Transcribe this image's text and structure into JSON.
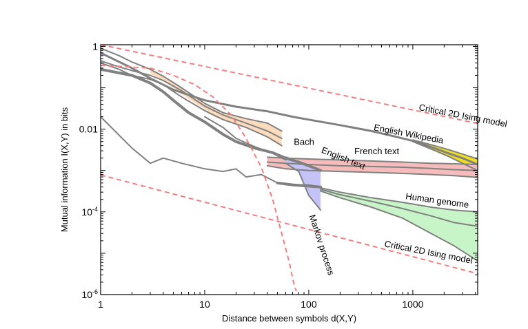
{
  "chart_data": {
    "type": "line",
    "xlabel": "Distance between symbols d(X,Y)",
    "ylabel": "Mutual information I(X,Y) in bits",
    "xscale": "log",
    "yscale": "log",
    "xlim": [
      1,
      4200
    ],
    "ylim": [
      1e-06,
      1.1
    ],
    "grid": false,
    "legend": "none (series labelled inline)",
    "xticks": [
      {
        "value": 1,
        "label": "1"
      },
      {
        "value": 10,
        "label": "10"
      },
      {
        "value": 100,
        "label": "100"
      },
      {
        "value": 1000,
        "label": "1000"
      }
    ],
    "yticks": [
      {
        "value": 1,
        "label": "1",
        "exp": ""
      },
      {
        "value": 0.01,
        "label": "0.01",
        "exp": ""
      },
      {
        "value": 0.0001,
        "label": "10",
        "exp": "-4"
      },
      {
        "value": 1e-06,
        "label": "10",
        "exp": "-6"
      }
    ],
    "bands": [
      {
        "id": "wikipedia",
        "fill": "#f0e020",
        "x": [
          1000,
          1500,
          2200,
          3000,
          4200
        ],
        "upper": [
          0.0055,
          0.0042,
          0.0032,
          0.0025,
          0.0019
        ],
        "lower": [
          0.005,
          0.0033,
          0.0022,
          0.0015,
          0.001
        ]
      },
      {
        "id": "bach",
        "fill": "#fddcbe",
        "x": [
          3,
          4,
          6,
          10,
          15,
          25,
          40,
          55
        ],
        "upper": [
          0.28,
          0.19,
          0.1,
          0.042,
          0.025,
          0.018,
          0.014,
          0.009
        ],
        "lower": [
          0.22,
          0.15,
          0.07,
          0.03,
          0.017,
          0.011,
          0.0065,
          0.004
        ]
      },
      {
        "id": "french",
        "fill": "#f6bcbc",
        "x": [
          40,
          60,
          100,
          200,
          400,
          800,
          1500,
          2500,
          4200
        ],
        "upper": [
          0.0021,
          0.002,
          0.0019,
          0.0018,
          0.0017,
          0.0016,
          0.0015,
          0.00145,
          0.0014
        ],
        "lower": [
          0.0013,
          0.0011,
          0.001,
          0.00095,
          0.0009,
          0.00085,
          0.0008,
          0.00075,
          0.00068
        ]
      },
      {
        "id": "english-text",
        "fill": "#c4c2f6",
        "x": [
          60,
          80,
          100,
          130
        ],
        "upper": [
          0.0023,
          0.0016,
          0.00125,
          0.001
        ],
        "lower": [
          0.0015,
          0.00095,
          0.00025,
          0.00011
        ]
      },
      {
        "id": "genome",
        "fill": "#c8f5c8",
        "x": [
          130,
          200,
          400,
          800,
          1500,
          2500,
          4200
        ],
        "upper": [
          0.00038,
          0.0003,
          0.00022,
          0.00017,
          0.00013,
          0.00011,
          0.0001
        ],
        "lower": [
          0.00032,
          0.00022,
          0.00013,
          7e-05,
          3e-05,
          1.5e-05,
          6.5e-06
        ]
      }
    ],
    "series": [
      {
        "id": "wiki-main",
        "color": "#808080",
        "width": 3,
        "x": [
          1,
          2,
          3,
          5,
          10,
          20,
          40,
          70,
          100,
          200,
          400,
          700,
          1000,
          1500,
          2200,
          3000,
          4200
        ],
        "y": [
          0.7,
          0.3,
          0.17,
          0.09,
          0.05,
          0.035,
          0.027,
          0.02,
          0.017,
          0.0125,
          0.009,
          0.0065,
          0.0052,
          0.0037,
          0.0026,
          0.002,
          0.0014
        ]
      },
      {
        "id": "wiki-up",
        "color": "#808080",
        "width": 2,
        "x": [
          1000,
          1500,
          2200,
          3000,
          4200
        ],
        "y": [
          0.0055,
          0.0042,
          0.0032,
          0.0025,
          0.0019
        ]
      },
      {
        "id": "wiki-lo",
        "color": "#808080",
        "width": 2,
        "x": [
          1000,
          1500,
          2200,
          3000,
          4200
        ],
        "y": [
          0.005,
          0.0033,
          0.0022,
          0.0015,
          0.001
        ]
      },
      {
        "id": "top-curve",
        "color": "#808080",
        "width": 2,
        "x": [
          1,
          1.5,
          2,
          3,
          4,
          6,
          10,
          15,
          25,
          40,
          55
        ],
        "y": [
          0.9,
          0.6,
          0.42,
          0.28,
          0.19,
          0.1,
          0.042,
          0.025,
          0.018,
          0.014,
          0.009
        ]
      },
      {
        "id": "bach-mid",
        "color": "#808080",
        "width": 2,
        "x": [
          1,
          1.5,
          2,
          3,
          4,
          6,
          10,
          15,
          25,
          40,
          55
        ],
        "y": [
          0.45,
          0.32,
          0.26,
          0.2,
          0.15,
          0.085,
          0.036,
          0.022,
          0.014,
          0.009,
          0.006
        ]
      },
      {
        "id": "bach-lo",
        "color": "#808080",
        "width": 2,
        "x": [
          1,
          1.5,
          2,
          3,
          4,
          6,
          10,
          15,
          25,
          40,
          55
        ],
        "y": [
          0.4,
          0.28,
          0.2,
          0.16,
          0.12,
          0.06,
          0.028,
          0.017,
          0.011,
          0.0065,
          0.004
        ]
      },
      {
        "id": "english-main",
        "color": "#808080",
        "width": 4,
        "x": [
          1,
          2,
          3,
          4,
          5,
          7,
          10,
          15,
          20,
          30,
          45,
          60,
          80,
          100,
          130
        ],
        "y": [
          0.28,
          0.2,
          0.13,
          0.08,
          0.05,
          0.025,
          0.015,
          0.0075,
          0.005,
          0.0035,
          0.0027,
          0.002,
          0.0016,
          0.0013,
          0.001
        ]
      },
      {
        "id": "english-sub",
        "color": "#808080",
        "width": 2,
        "x": [
          10,
          15,
          20,
          30,
          45,
          60
        ],
        "y": [
          0.02,
          0.011,
          0.006,
          0.0038,
          0.0026,
          0.0018
        ]
      },
      {
        "id": "english-drop",
        "color": "#808080",
        "width": 2,
        "x": [
          60,
          80,
          100,
          130
        ],
        "y": [
          0.0015,
          0.00095,
          0.00025,
          0.00011
        ]
      },
      {
        "id": "french-up",
        "color": "#808080",
        "width": 2,
        "x": [
          40,
          60,
          100,
          200,
          400,
          800,
          1500,
          2500,
          4200
        ],
        "y": [
          0.0021,
          0.002,
          0.0019,
          0.0018,
          0.0017,
          0.0016,
          0.0015,
          0.00145,
          0.0014
        ]
      },
      {
        "id": "french-mid",
        "color": "#808080",
        "width": 2,
        "x": [
          40,
          60,
          100,
          200,
          400,
          800,
          1500,
          2500,
          4200
        ],
        "y": [
          0.0016,
          0.0015,
          0.0014,
          0.0013,
          0.00125,
          0.0012,
          0.00112,
          0.00105,
          0.001
        ]
      },
      {
        "id": "french-lo",
        "color": "#808080",
        "width": 2,
        "x": [
          40,
          60,
          100,
          200,
          400,
          800,
          1500,
          2500,
          4200
        ],
        "y": [
          0.0013,
          0.0011,
          0.001,
          0.00095,
          0.0009,
          0.00085,
          0.0008,
          0.00075,
          0.00068
        ]
      },
      {
        "id": "lower-curve",
        "color": "#808080",
        "width": 2,
        "x": [
          1,
          2,
          3,
          4,
          6,
          10,
          15,
          20,
          25,
          35,
          50,
          70,
          100,
          130
        ],
        "y": [
          0.02,
          0.0035,
          0.0015,
          0.002,
          0.0015,
          0.0011,
          0.00095,
          0.0011,
          0.0007,
          0.0008,
          0.0005,
          0.00045,
          0.00045,
          0.0004
        ]
      },
      {
        "id": "genome-main",
        "color": "#808080",
        "width": 4,
        "x": [
          50,
          70,
          100,
          130
        ],
        "y": [
          0.0005,
          0.00045,
          0.00042,
          0.0004
        ]
      },
      {
        "id": "genome-up",
        "color": "#808080",
        "width": 2,
        "x": [
          130,
          200,
          400,
          800,
          1500,
          2500,
          4200
        ],
        "y": [
          0.00038,
          0.0003,
          0.00022,
          0.00017,
          0.00013,
          0.00011,
          0.0001
        ]
      },
      {
        "id": "genome-mid",
        "color": "#808080",
        "width": 2,
        "x": [
          130,
          200,
          400,
          800,
          1500,
          2500,
          4200
        ],
        "y": [
          0.00035,
          0.00026,
          0.00018,
          0.00012,
          8e-05,
          5.5e-05,
          4.5e-05
        ]
      },
      {
        "id": "genome-lo",
        "color": "#808080",
        "width": 2,
        "x": [
          130,
          200,
          400,
          800,
          1500,
          2500,
          4200
        ],
        "y": [
          0.00032,
          0.00022,
          0.00013,
          7e-05,
          3e-05,
          1.5e-05,
          6.5e-06
        ]
      },
      {
        "id": "ising-upper",
        "color": "#f47c7c",
        "width": 2,
        "dash": true,
        "x": [
          1,
          4200
        ],
        "y": [
          1.1,
          0.0137
        ]
      },
      {
        "id": "ising-lower",
        "color": "#f47c7c",
        "width": 2,
        "dash": true,
        "x": [
          1,
          4200
        ],
        "y": [
          0.00078,
          3.2e-06
        ]
      },
      {
        "id": "markov",
        "color": "#f47c7c",
        "width": 2,
        "dash": true,
        "x": [
          1,
          3,
          5,
          8,
          12,
          18,
          25,
          35,
          45,
          55,
          65,
          72,
          76
        ],
        "y": [
          0.35,
          0.3,
          0.2,
          0.12,
          0.06,
          0.022,
          0.006,
          0.0012,
          0.0002,
          3e-05,
          6e-06,
          1.8e-06,
          1.2e-06
        ]
      }
    ],
    "annotations": [
      {
        "text": "Critical 2D Ising model",
        "x": 3000,
        "y": 0.018,
        "rotate": 11
      },
      {
        "text": "English Wikipedia",
        "x": 900,
        "y": 0.0065,
        "rotate": 11
      },
      {
        "text": "Bach",
        "x": 90,
        "y": 0.0042,
        "rotate": 0
      },
      {
        "text": "English text",
        "x": 210,
        "y": 0.0017,
        "rotate": 22
      },
      {
        "text": "French text",
        "x": 450,
        "y": 0.0025,
        "rotate": 0
      },
      {
        "text": "Human genome",
        "x": 1700,
        "y": 0.00016,
        "rotate": 8
      },
      {
        "text": "Critical 2D Ising model",
        "x": 1400,
        "y": 9e-06,
        "rotate": 11
      },
      {
        "text": "Markov process",
        "x": 125,
        "y": 1.5e-05,
        "rotate": 72
      }
    ]
  }
}
